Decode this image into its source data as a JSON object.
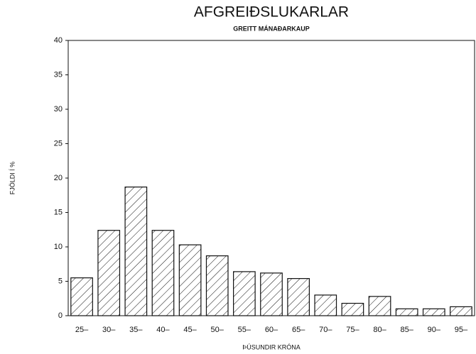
{
  "chart_data": {
    "type": "bar",
    "title": "AFGREIÐSLUKARLAR",
    "subtitle": "GREITT MÁNAÐARKAUP",
    "x_label": "ÞÚSUNDIR KRÓNA",
    "y_label": "FJÖLDI Í %",
    "categories": [
      "25–",
      "30–",
      "35–",
      "40–",
      "45–",
      "50–",
      "55–",
      "60–",
      "65–",
      "70–",
      "75–",
      "80–",
      "85–",
      "90–",
      "95–"
    ],
    "values": [
      5.5,
      12.4,
      18.7,
      12.4,
      10.3,
      8.7,
      6.4,
      6.2,
      5.4,
      3.0,
      1.8,
      2.8,
      1.0,
      1.0,
      1.3
    ],
    "color": "#111111",
    "ylim": [
      0,
      40
    ],
    "yticks": [
      0,
      5,
      10,
      15,
      20,
      25,
      30,
      35,
      40
    ]
  }
}
